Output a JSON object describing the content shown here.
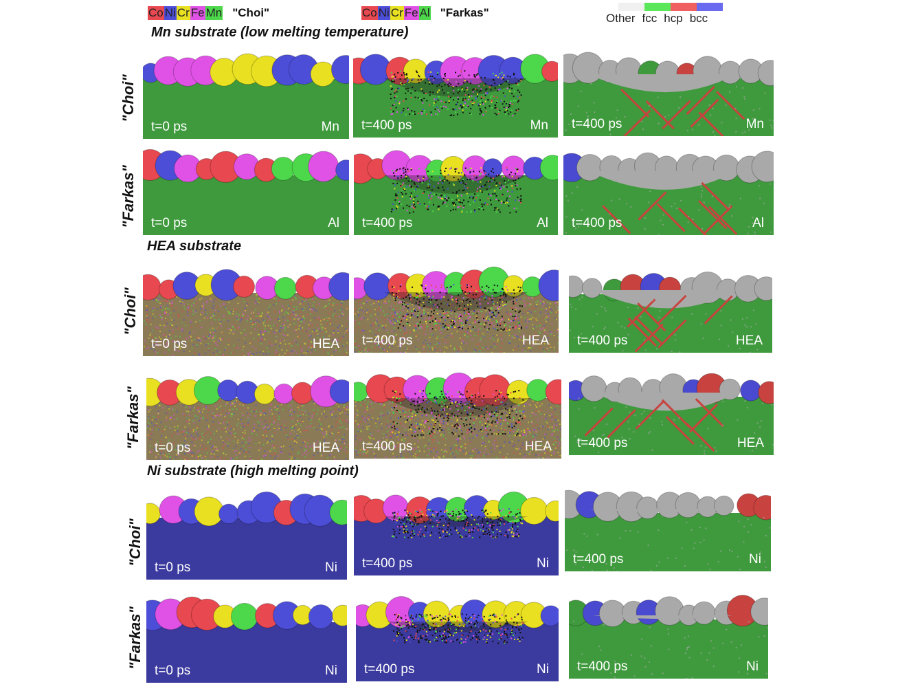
{
  "legend_choi": {
    "elements": [
      {
        "label": "Co",
        "color": "#e8484f"
      },
      {
        "label": "Ni",
        "color": "#4d4ed8"
      },
      {
        "label": "Cr",
        "color": "#e8e020"
      },
      {
        "label": "Fe",
        "color": "#e052e6"
      },
      {
        "label": "Mn",
        "color": "#4cd84a"
      }
    ],
    "name": "\"Choi\""
  },
  "legend_farkas": {
    "elements": [
      {
        "label": "Co",
        "color": "#e8484f"
      },
      {
        "label": "Ni",
        "color": "#4d4ed8"
      },
      {
        "label": "Cr",
        "color": "#e8e020"
      },
      {
        "label": "Fe",
        "color": "#e052e6"
      },
      {
        "label": "Al",
        "color": "#4cd84a"
      }
    ],
    "name": "\"Farkas\""
  },
  "structure_legend": {
    "items": [
      {
        "label": "Other",
        "color": "#f0f0f0"
      },
      {
        "label": "fcc",
        "color": "#5ae85a"
      },
      {
        "label": "hcp",
        "color": "#f06060"
      },
      {
        "label": "bcc",
        "color": "#6a6af0"
      }
    ]
  },
  "sections": [
    {
      "title": "Mn substrate (low melting temperature)",
      "substrate_color": "#3f9a3d",
      "rows": [
        {
          "label": "\"Choi\"",
          "panels": [
            {
              "time": "t=0 ps",
              "substrate": "Mn",
              "view": "initial"
            },
            {
              "time": "t=400 ps",
              "substrate": "Mn",
              "view": "mixed"
            },
            {
              "time": "t=400 ps",
              "substrate": "Mn",
              "view": "structure"
            }
          ]
        },
        {
          "label": "\"Farkas\"",
          "panels": [
            {
              "time": "t=0 ps",
              "substrate": "Al",
              "view": "initial"
            },
            {
              "time": "t=400 ps",
              "substrate": "Al",
              "view": "mixed"
            },
            {
              "time": "t=400 ps",
              "substrate": "Al",
              "view": "structure"
            }
          ]
        }
      ]
    },
    {
      "title": "HEA substrate",
      "substrate_color": "#8a7a56",
      "rows": [
        {
          "label": "\"Choi\"",
          "panels": [
            {
              "time": "t=0 ps",
              "substrate": "HEA",
              "view": "initial"
            },
            {
              "time": "t=400 ps",
              "substrate": "HEA",
              "view": "mixed"
            },
            {
              "time": "t=400 ps",
              "substrate": "HEA",
              "view": "structure"
            }
          ]
        },
        {
          "label": "\"Farkas\"",
          "panels": [
            {
              "time": "t=0 ps",
              "substrate": "HEA",
              "view": "initial"
            },
            {
              "time": "t=400 ps",
              "substrate": "HEA",
              "view": "mixed"
            },
            {
              "time": "t=400 ps",
              "substrate": "HEA",
              "view": "structure"
            }
          ]
        }
      ]
    },
    {
      "title": "Ni substrate (high melting point)",
      "substrate_color": "#3b3a9e",
      "rows": [
        {
          "label": "\"Choi\"",
          "panels": [
            {
              "time": "t=0 ps",
              "substrate": "Ni",
              "view": "initial"
            },
            {
              "time": "t=400 ps",
              "substrate": "Ni",
              "view": "mixed"
            },
            {
              "time": "t=400 ps",
              "substrate": "Ni",
              "view": "structure"
            }
          ]
        },
        {
          "label": "\"Farkas\"",
          "panels": [
            {
              "time": "t=0 ps",
              "substrate": "Ni",
              "view": "initial"
            },
            {
              "time": "t=400 ps",
              "substrate": "Ni",
              "view": "mixed"
            },
            {
              "time": "t=400 ps",
              "substrate": "Ni",
              "view": "structure"
            }
          ]
        }
      ]
    }
  ]
}
